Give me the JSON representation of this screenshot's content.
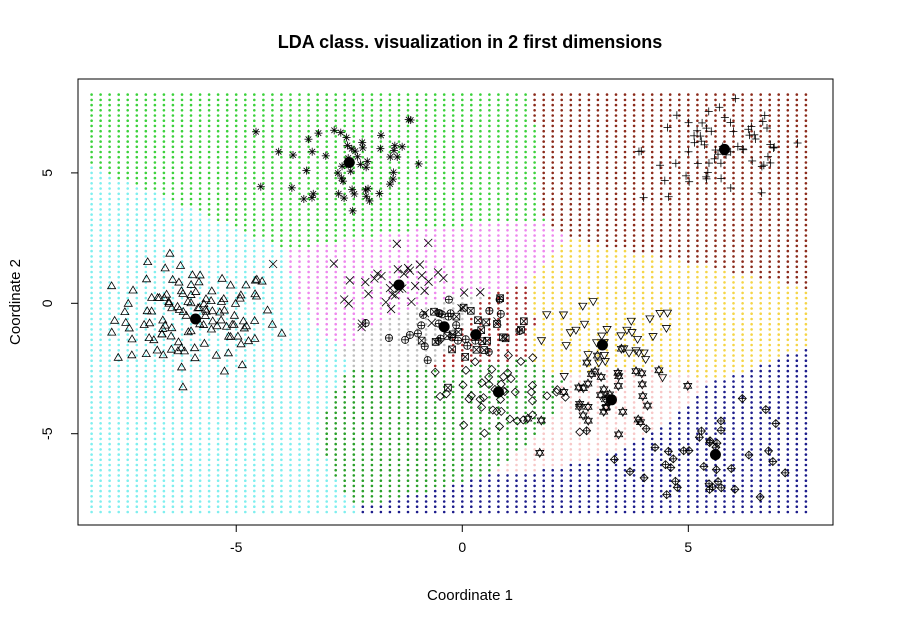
{
  "chart_data": {
    "type": "scatter",
    "title": "LDA class. visualization in 2 first dimensions",
    "xlabel": "Coordinate 1",
    "ylabel": "Coordinate 2",
    "xlim": [
      -8.5,
      8.2
    ],
    "ylim": [
      -8.5,
      8.6
    ],
    "grid_xlim": [
      -8.2,
      7.6
    ],
    "grid_ylim": [
      -8.0,
      8.0
    ],
    "xticks": [
      -5,
      0,
      5
    ],
    "yticks": [
      -5,
      0,
      5
    ],
    "xtick_labels": [
      "-5",
      "0",
      "5"
    ],
    "ytick_labels": [
      "-5",
      "0",
      "5"
    ],
    "background_points": "dense grid of small dots colored by predicted class region",
    "classes": [
      {
        "name": "triangle",
        "marker": "triangle",
        "region_color": "#7fefef",
        "centroid": [
          -5.9,
          -0.6
        ],
        "spread": [
          0.9,
          1.0
        ],
        "n": 120
      },
      {
        "name": "asterisk",
        "marker": "asterisk",
        "region_color": "#3bd13b",
        "centroid": [
          -2.5,
          5.4
        ],
        "spread": [
          0.9,
          1.1
        ],
        "n": 55
      },
      {
        "name": "cross",
        "marker": "x",
        "region_color": "#ee88ee",
        "centroid": [
          -1.4,
          0.7
        ],
        "spread": [
          0.8,
          0.7
        ],
        "n": 40
      },
      {
        "name": "circle-plus",
        "marker": "circle-plus",
        "region_color": "#bebebe",
        "centroid": [
          -0.4,
          -0.9
        ],
        "spread": [
          0.6,
          0.6
        ],
        "n": 30
      },
      {
        "name": "square-x",
        "marker": "square-x",
        "region_color": "#a62a2a",
        "centroid": [
          0.3,
          -1.2
        ],
        "spread": [
          0.6,
          0.6
        ],
        "n": 25
      },
      {
        "name": "diamond",
        "marker": "diamond",
        "region_color": "#2aa02a",
        "centroid": [
          0.8,
          -3.4
        ],
        "spread": [
          0.8,
          0.6
        ],
        "n": 45
      },
      {
        "name": "plus",
        "marker": "plus",
        "region_color": "#8b2a1a",
        "centroid": [
          5.8,
          5.9
        ],
        "spread": [
          0.9,
          1.0
        ],
        "n": 65
      },
      {
        "name": "down-triangle",
        "marker": "down-triangle",
        "region_color": "#f5d547",
        "centroid": [
          3.1,
          -1.6
        ],
        "spread": [
          0.9,
          0.8
        ],
        "n": 35
      },
      {
        "name": "star-of-david",
        "marker": "star-of-david",
        "region_color": "#f7c8c8",
        "centroid": [
          3.3,
          -3.7
        ],
        "spread": [
          0.7,
          0.8
        ],
        "n": 40
      },
      {
        "name": "diamond-plus",
        "marker": "diamond-plus",
        "region_color": "#1b1b8b",
        "centroid": [
          5.6,
          -5.8
        ],
        "spread": [
          1.0,
          0.9
        ],
        "n": 40
      }
    ],
    "centroids": [
      [
        -5.9,
        -0.6
      ],
      [
        -2.5,
        5.4
      ],
      [
        -1.4,
        0.7
      ],
      [
        -0.4,
        -0.9
      ],
      [
        0.3,
        -1.2
      ],
      [
        0.8,
        -3.4
      ],
      [
        5.8,
        5.9
      ],
      [
        3.1,
        -1.6
      ],
      [
        3.3,
        -3.7
      ],
      [
        5.6,
        -5.8
      ]
    ]
  }
}
